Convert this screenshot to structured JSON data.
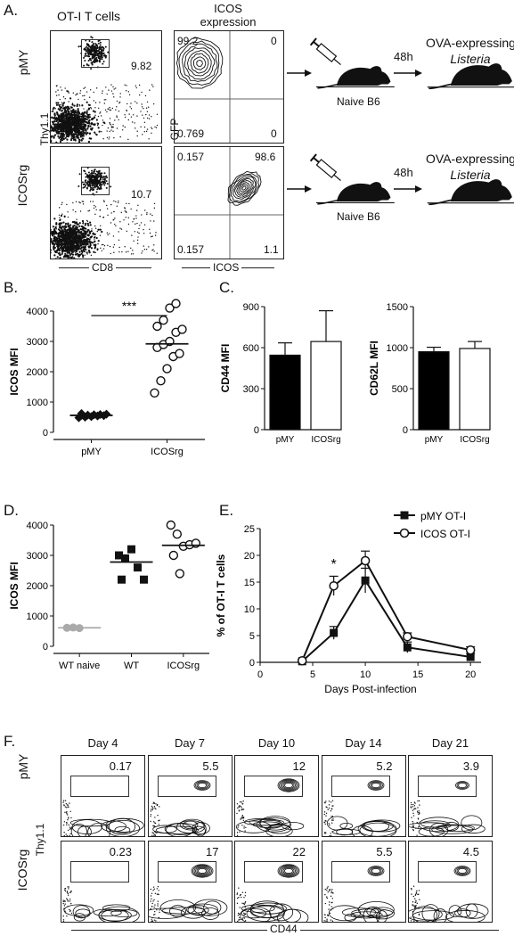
{
  "panels": {
    "A": "A.",
    "B": "B.",
    "C": "C.",
    "D": "D.",
    "E": "E.",
    "F": "F."
  },
  "panelA": {
    "col1_title": "OT-I T cells",
    "col2_title_line1": "ICOS",
    "col2_title_line2": "expression",
    "row_labels": [
      "pMY",
      "ICOSrg"
    ],
    "y_axis_col1": "Thy1.1",
    "x_axis_col1": "CD8",
    "y_axis_col2": "GFP",
    "x_axis_col2": "ICOS",
    "gate_values": [
      "9.82",
      "10.7"
    ],
    "quadrants_pMY": {
      "ul": "99.2",
      "ur": "0",
      "ll": "0.769",
      "lr": "0"
    },
    "quadrants_ICOSrg": {
      "ul": "0.157",
      "ur": "98.6",
      "ll": "0.157",
      "lr": "1.1"
    },
    "mouse_label": "Naive B6",
    "time_label": "48h",
    "pathogen_line1": "OVA-expressing",
    "pathogen_line2": "Listeria"
  },
  "chart_data": [
    {
      "id": "B",
      "type": "scatter",
      "ylabel": "ICOS MFI",
      "categories": [
        "pMY",
        "ICOSrg"
      ],
      "ylim": [
        0,
        4000
      ],
      "yticks": [
        0,
        1000,
        2000,
        3000,
        4000
      ],
      "significance": "***",
      "series": [
        {
          "name": "pMY",
          "marker": "filled-diamond",
          "values": [
            480,
            500,
            520,
            540,
            550,
            560,
            570,
            580,
            590,
            600,
            620
          ],
          "mean": 560
        },
        {
          "name": "ICOSrg",
          "marker": "open-circle",
          "values": [
            1300,
            1700,
            2100,
            2500,
            2600,
            2800,
            2900,
            3000,
            3300,
            3400,
            3500,
            3700,
            4100,
            4250
          ],
          "mean": 2920
        }
      ]
    },
    {
      "id": "C1",
      "type": "bar",
      "ylabel": "CD44 MFI",
      "categories": [
        "pMY",
        "ICOSrg"
      ],
      "values": [
        545,
        645
      ],
      "errors": [
        90,
        225
      ],
      "fills": [
        "#000000",
        "#ffffff"
      ],
      "ylim": [
        0,
        900
      ],
      "yticks": [
        0,
        300,
        600,
        900
      ]
    },
    {
      "id": "C2",
      "type": "bar",
      "ylabel": "CD62L MFI",
      "categories": [
        "pMY",
        "ICOSrg"
      ],
      "values": [
        950,
        990
      ],
      "errors": [
        55,
        85
      ],
      "fills": [
        "#000000",
        "#ffffff"
      ],
      "ylim": [
        0,
        1500
      ],
      "yticks": [
        0,
        500,
        1000,
        1500
      ]
    },
    {
      "id": "D",
      "type": "scatter",
      "ylabel": "ICOS MFI",
      "categories": [
        "WT naive",
        "WT",
        "ICOSrg"
      ],
      "ylim": [
        0,
        4000
      ],
      "yticks": [
        0,
        1000,
        2000,
        3000,
        4000
      ],
      "series": [
        {
          "name": "WT naive",
          "marker": "grey-circle",
          "values": [
            610,
            620,
            600
          ],
          "mean": 610
        },
        {
          "name": "WT",
          "marker": "filled-square",
          "values": [
            3000,
            2900,
            3200,
            2600,
            2200,
            2200
          ],
          "mean": 2780
        },
        {
          "name": "ICOSrg",
          "marker": "open-circle",
          "values": [
            4000,
            3700,
            3300,
            3350,
            3400,
            3000,
            2400
          ],
          "mean": 3330
        }
      ]
    },
    {
      "id": "E",
      "type": "line",
      "ylabel": "% of OT-I T cells",
      "xlabel": "Days Post-infection",
      "xlim": [
        0,
        21
      ],
      "xticks": [
        0,
        5,
        10,
        15,
        20
      ],
      "ylim": [
        0,
        25
      ],
      "yticks": [
        0,
        5,
        10,
        15,
        20,
        25
      ],
      "x": [
        4,
        7,
        10,
        14,
        20
      ],
      "annotation": {
        "text": "*",
        "x": 7
      },
      "series": [
        {
          "name": "pMY OT-I",
          "marker": "filled-square",
          "values": [
            0.2,
            5.5,
            15.3,
            2.8,
            1.0
          ],
          "errors": [
            0.1,
            1.2,
            2.3,
            1.0,
            0.6
          ]
        },
        {
          "name": "ICOS OT-I",
          "marker": "open-circle",
          "values": [
            0.3,
            14.3,
            19.0,
            4.8,
            2.3
          ],
          "errors": [
            0.2,
            1.8,
            1.8,
            0.7,
            0.6
          ]
        }
      ]
    }
  ],
  "panelF": {
    "days": [
      "Day 4",
      "Day 7",
      "Day 10",
      "Day 14",
      "Day 21"
    ],
    "rows": [
      {
        "label": "pMY",
        "values": [
          "0.17",
          "5.5",
          "12",
          "5.2",
          "3.9"
        ]
      },
      {
        "label": "ICOSrg",
        "values": [
          "0.23",
          "17",
          "22",
          "5.5",
          "4.5"
        ]
      }
    ],
    "y_axis": "Thy1.1",
    "x_axis": "CD44"
  }
}
